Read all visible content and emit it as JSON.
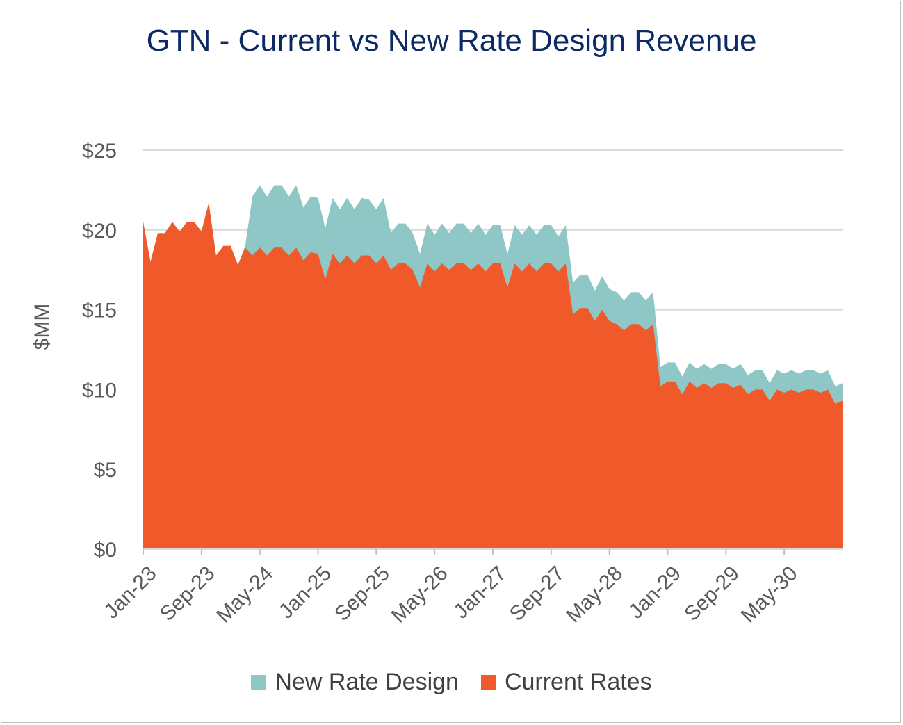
{
  "chart_data": {
    "type": "area",
    "title": "GTN - Current vs New Rate Design Revenue",
    "ylabel": "$MM",
    "xlabel": "",
    "ylim": [
      0,
      25
    ],
    "yticks": [
      "$0",
      "$5",
      "$10",
      "$15",
      "$20",
      "$25"
    ],
    "xticks": [
      "Jan-23",
      "Sep-23",
      "May-24",
      "Jan-25",
      "Sep-25",
      "May-26",
      "Jan-27",
      "Sep-27",
      "May-28",
      "Jan-29",
      "Sep-29",
      "May-30"
    ],
    "grid": true,
    "legend": "bottom",
    "colors": {
      "current": "#f05a2b",
      "new": "#8fc6c6"
    },
    "x_start": "Jan-23",
    "series": [
      {
        "name": "Current Rates",
        "values": [
          20.5,
          18.0,
          19.8,
          19.8,
          20.5,
          19.9,
          20.5,
          20.5,
          19.9,
          21.7,
          18.4,
          19.0,
          19.0,
          17.8,
          18.9,
          18.4,
          18.9,
          18.4,
          18.9,
          18.9,
          18.4,
          18.9,
          18.1,
          18.6,
          18.5,
          16.9,
          18.5,
          17.9,
          18.4,
          17.9,
          18.4,
          18.4,
          17.9,
          18.4,
          17.5,
          17.9,
          17.9,
          17.5,
          16.4,
          17.9,
          17.4,
          17.9,
          17.5,
          17.9,
          17.9,
          17.5,
          17.9,
          17.4,
          17.9,
          17.9,
          16.4,
          17.9,
          17.4,
          17.9,
          17.4,
          17.9,
          17.9,
          17.4,
          17.9,
          14.7,
          15.1,
          15.1,
          14.3,
          15.0,
          14.3,
          14.1,
          13.7,
          14.1,
          14.1,
          13.7,
          14.1,
          10.2,
          10.5,
          10.5,
          9.7,
          10.5,
          10.1,
          10.4,
          10.1,
          10.4,
          10.4,
          10.1,
          10.3,
          9.7,
          10.0,
          10.0,
          9.3,
          10.0,
          9.8,
          10.0,
          9.8,
          10.0,
          10.0,
          9.8,
          10.0,
          9.1,
          9.3
        ]
      },
      {
        "name": "New Rate Design",
        "values": [
          20.5,
          18.0,
          19.8,
          19.8,
          20.5,
          19.9,
          20.5,
          20.5,
          19.9,
          21.7,
          18.4,
          19.0,
          19.0,
          17.8,
          19.0,
          22.1,
          22.8,
          22.1,
          22.8,
          22.8,
          22.1,
          22.8,
          21.4,
          22.1,
          22.0,
          20.1,
          22.0,
          21.3,
          22.0,
          21.3,
          22.0,
          21.9,
          21.3,
          22.0,
          19.8,
          20.4,
          20.4,
          19.8,
          18.5,
          20.4,
          19.7,
          20.4,
          19.8,
          20.4,
          20.4,
          19.8,
          20.4,
          19.7,
          20.3,
          20.3,
          18.5,
          20.3,
          19.7,
          20.3,
          19.7,
          20.3,
          20.3,
          19.6,
          20.3,
          16.7,
          17.2,
          17.2,
          16.2,
          17.1,
          16.3,
          16.1,
          15.6,
          16.1,
          16.1,
          15.6,
          16.1,
          11.4,
          11.7,
          11.7,
          10.8,
          11.7,
          11.3,
          11.6,
          11.3,
          11.6,
          11.6,
          11.3,
          11.6,
          10.9,
          11.2,
          11.2,
          10.4,
          11.2,
          11.0,
          11.2,
          11.0,
          11.2,
          11.2,
          11.0,
          11.2,
          10.2,
          10.4
        ]
      }
    ]
  }
}
